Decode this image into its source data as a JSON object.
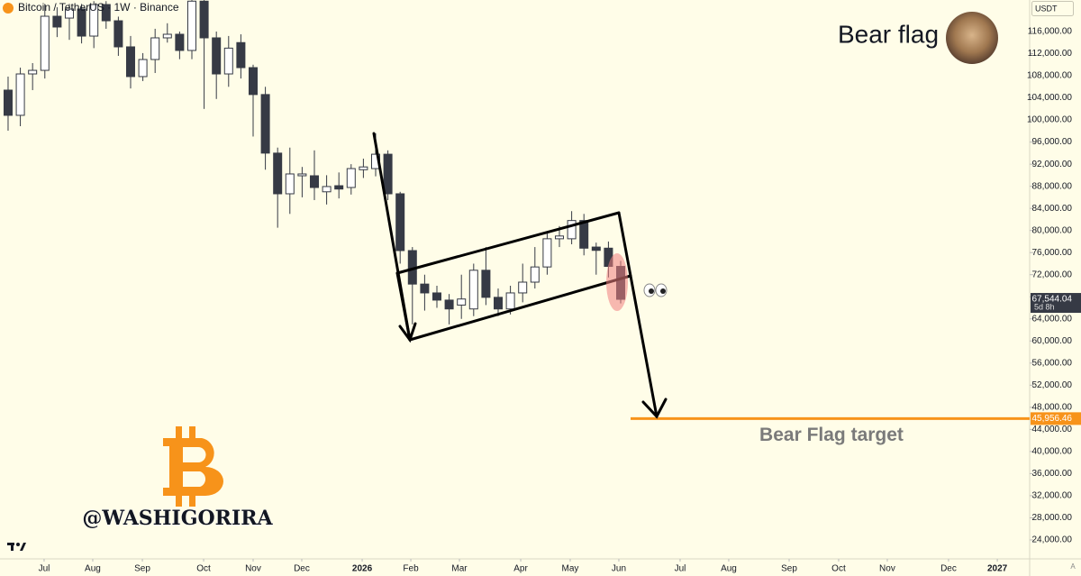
{
  "chart_data": {
    "type": "candlestick",
    "title": "Bitcoin / TetherUS · 1W · Binance",
    "currency": "USDT",
    "x": [
      0,
      1,
      2,
      3,
      4,
      5,
      6,
      7,
      8,
      9,
      10,
      11,
      12,
      13,
      14,
      15,
      16,
      17,
      18,
      19,
      20,
      21,
      22,
      23,
      24,
      25,
      26,
      27,
      28,
      29,
      30,
      31,
      32,
      33,
      34,
      35,
      36,
      37,
      38,
      39,
      40,
      41,
      42,
      43,
      44,
      45,
      46,
      47,
      48,
      49,
      50
    ],
    "open": [
      105400,
      100840,
      108330,
      108980,
      118770,
      118440,
      120080,
      115180,
      120890,
      117950,
      113230,
      107850,
      110940,
      114860,
      115510,
      112580,
      121500,
      114860,
      108330,
      114000,
      109470,
      104600,
      94000,
      86640,
      89900,
      89900,
      87000,
      88100,
      87780,
      91000,
      91200,
      93800,
      86640,
      76360,
      70300,
      68700,
      67400,
      66500,
      65800,
      72800,
      67900,
      65800,
      68700,
      70650,
      73400,
      78500,
      78500,
      81800,
      77000,
      76800,
      73500
    ],
    "high": [
      107850,
      109470,
      110290,
      121000,
      120400,
      121000,
      121000,
      121500,
      121500,
      118700,
      115200,
      112100,
      116500,
      117500,
      116000,
      121700,
      121700,
      116000,
      115200,
      115500,
      110000,
      106000,
      95000,
      95000,
      91500,
      94500,
      90000,
      90500,
      92000,
      93000,
      97600,
      94500,
      87000,
      77000,
      72000,
      70000,
      68500,
      72000,
      74000,
      77000,
      69500,
      70000,
      74000,
      77000,
      79800,
      80800,
      83500,
      83000,
      77800,
      78000,
      74500
    ],
    "low": [
      98060,
      98870,
      105400,
      107500,
      115000,
      114500,
      113850,
      113000,
      116500,
      111600,
      105700,
      107040,
      108500,
      114000,
      111000,
      111000,
      102000,
      103800,
      106000,
      107500,
      97000,
      91000,
      80500,
      83000,
      86000,
      85500,
      84700,
      85800,
      86500,
      89500,
      89800,
      85500,
      74000,
      63000,
      65500,
      66000,
      63000,
      64000,
      64500,
      66500,
      64500,
      64800,
      67000,
      69500,
      72000,
      77000,
      77500,
      75500,
      72000,
      71500,
      66800
    ],
    "close": [
      100840,
      108330,
      108980,
      118770,
      116820,
      120080,
      115180,
      120890,
      117950,
      113230,
      107850,
      110940,
      114860,
      115510,
      112580,
      121500,
      114860,
      108330,
      113000,
      109470,
      104600,
      94000,
      86640,
      90230,
      90230,
      87780,
      87950,
      87500,
      91200,
      91500,
      93800,
      86640,
      76360,
      70300,
      68700,
      67400,
      65800,
      67600,
      72800,
      67900,
      65800,
      68700,
      70650,
      73400,
      78500,
      79000,
      81800,
      76800,
      76400,
      73500,
      67544.04
    ],
    "up_color": "#ffffff",
    "down_color": "#363a45",
    "xlim": [
      -0.66,
      83.38
    ],
    "xticks": [
      {
        "value": 2.94,
        "label": "Jul"
      },
      {
        "value": 6.91,
        "label": "Aug"
      },
      {
        "value": 10.96,
        "label": "Sep"
      },
      {
        "value": 15.96,
        "label": "Oct"
      },
      {
        "value": 20,
        "label": "Nov"
      },
      {
        "value": 23.97,
        "label": "Dec"
      },
      {
        "value": 28.9,
        "label": "2026"
      },
      {
        "value": 32.87,
        "label": "Feb"
      },
      {
        "value": 36.84,
        "label": "Mar"
      },
      {
        "value": 41.84,
        "label": "Apr"
      },
      {
        "value": 45.88,
        "label": "May"
      },
      {
        "value": 49.85,
        "label": "Jun"
      },
      {
        "value": 54.85,
        "label": "Jul"
      },
      {
        "value": 58.82,
        "label": "Aug"
      },
      {
        "value": 63.75,
        "label": "Sep"
      },
      {
        "value": 67.79,
        "label": "Oct"
      },
      {
        "value": 71.76,
        "label": "Nov"
      },
      {
        "value": 76.76,
        "label": "Dec"
      },
      {
        "value": 80.74,
        "label": "2027"
      }
    ],
    "ylim": [
      20570,
      121710
    ],
    "yticks": [
      {
        "value": 24000,
        "label": "24,000.00"
      },
      {
        "value": 28000,
        "label": "28,000.00"
      },
      {
        "value": 32000,
        "label": "32,000.00"
      },
      {
        "value": 36000,
        "label": "36,000.00"
      },
      {
        "value": 40000,
        "label": "40,000.00"
      },
      {
        "value": 44000,
        "label": "44,000.00"
      },
      {
        "value": 48000,
        "label": "48,000.00"
      },
      {
        "value": 52000,
        "label": "52,000.00"
      },
      {
        "value": 56000,
        "label": "56,000.00"
      },
      {
        "value": 60000,
        "label": "60,000.00"
      },
      {
        "value": 64000,
        "label": "64,000.00"
      },
      {
        "value": 68000,
        "label": "68,000.00"
      },
      {
        "value": 72000,
        "label": "72,000.00"
      },
      {
        "value": 76000,
        "label": "76,000.00"
      },
      {
        "value": 80000,
        "label": "80,000.00"
      },
      {
        "value": 84000,
        "label": "84,000.00"
      },
      {
        "value": 88000,
        "label": "88,000.00"
      },
      {
        "value": 92000,
        "label": "92,000.00"
      },
      {
        "value": 96000,
        "label": "96,000.00"
      },
      {
        "value": 100000,
        "label": "100,000.00"
      },
      {
        "value": 104000,
        "label": "104,000.00"
      },
      {
        "value": 108000,
        "label": "108,000.00"
      },
      {
        "value": 112000,
        "label": "112,000.00"
      },
      {
        "value": 116000,
        "label": "116,000.00"
      }
    ],
    "last_price": {
      "value": 67544.04,
      "label": "67,544.04",
      "countdown": "5d 8h"
    },
    "target": {
      "value": 45956.46,
      "label": "45,956.46",
      "color": "#f7931a",
      "text": "Bear Flag target"
    },
    "pattern_label": "Bear flag",
    "watermark": "@WASHIGORIRA"
  }
}
